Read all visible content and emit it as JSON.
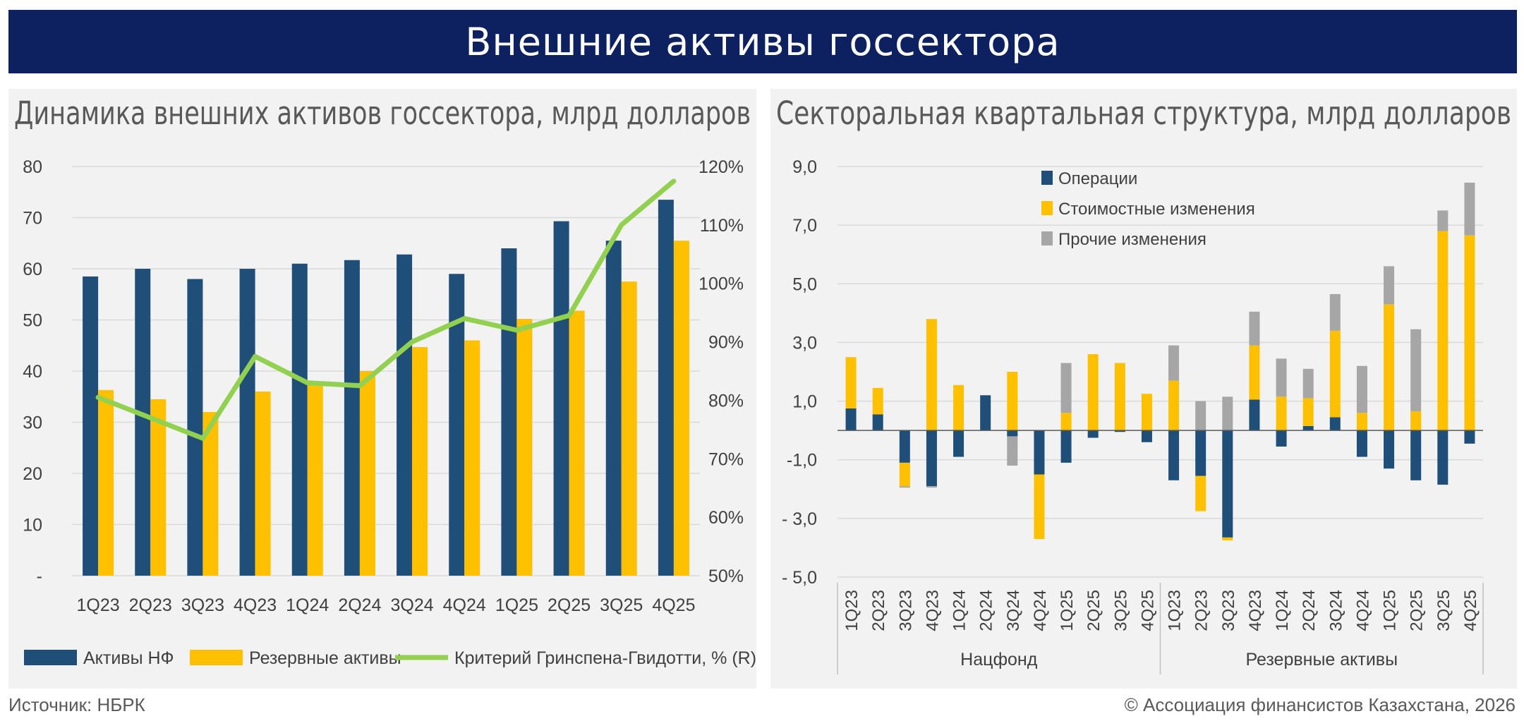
{
  "header": {
    "title": "Внешние активы госсектора"
  },
  "footer": {
    "source": "Источник: НБРК",
    "copyright": "© Ассоциация финансистов Казахстана, 2026"
  },
  "colors": {
    "banner": "#0d2160",
    "navy": "#1f4e79",
    "yellow": "#ffc000",
    "green": "#92d050",
    "gray": "#a6a6a6"
  },
  "chart_data": [
    {
      "type": "bar",
      "title": "Динамика внешних активов госсектора, млрд долларов",
      "categories": [
        "1Q23",
        "2Q23",
        "3Q23",
        "4Q23",
        "1Q24",
        "2Q24",
        "3Q24",
        "4Q24",
        "1Q25",
        "2Q25",
        "3Q25",
        "4Q25"
      ],
      "y_ticks": [
        "-",
        "10",
        "20",
        "30",
        "40",
        "50",
        "60",
        "70",
        "80"
      ],
      "y2_ticks": [
        "50%",
        "60%",
        "70%",
        "80%",
        "90%",
        "100%",
        "110%",
        "120%"
      ],
      "ylim": [
        0,
        80
      ],
      "y2lim": [
        50,
        120
      ],
      "grid": true,
      "legend_position": "bottom",
      "series": [
        {
          "name": "Активы НФ",
          "kind": "bar",
          "color": "#1f4e79",
          "values": [
            58.5,
            60.0,
            58.0,
            60.0,
            61.0,
            61.7,
            62.8,
            59.0,
            64.0,
            69.3,
            65.5,
            73.5
          ]
        },
        {
          "name": "Резервные активы",
          "kind": "bar",
          "color": "#ffc000",
          "values": [
            36.3,
            34.5,
            32.0,
            36.0,
            37.5,
            40.0,
            44.7,
            46.0,
            50.2,
            51.8,
            57.5,
            65.5
          ]
        },
        {
          "name": "Критерий Гринспена-Гвидотти, % (R)",
          "kind": "line",
          "axis": "right",
          "color": "#92d050",
          "values": [
            80.5,
            77.0,
            73.5,
            87.5,
            83.0,
            82.5,
            90.0,
            94.0,
            92.0,
            94.5,
            110.0,
            117.5
          ]
        }
      ]
    },
    {
      "type": "bar",
      "stacked": true,
      "title": "Секторальная квартальная структура, млрд долларов",
      "categories": [
        "1Q23",
        "2Q23",
        "3Q23",
        "4Q23",
        "1Q24",
        "2Q24",
        "3Q24",
        "4Q24",
        "1Q25",
        "2Q25",
        "3Q25",
        "4Q25",
        "1Q23",
        "2Q23",
        "3Q23",
        "4Q23",
        "1Q24",
        "2Q24",
        "3Q24",
        "4Q24",
        "1Q25",
        "2Q25",
        "3Q25",
        "4Q25"
      ],
      "groups": [
        {
          "label": "Нацфонд",
          "count": 12
        },
        {
          "label": "Резервные активы",
          "count": 12
        }
      ],
      "y_ticks": [
        "- 5,0",
        "- 3,0",
        "-1,0",
        "1,0",
        "3,0",
        "5,0",
        "7,0",
        "9,0"
      ],
      "ylim": [
        -5,
        9
      ],
      "grid": true,
      "legend_position": "top-left",
      "series": [
        {
          "name": "Операции",
          "color": "#1f4e79",
          "values": [
            0.75,
            0.55,
            -1.1,
            -1.9,
            -0.9,
            1.2,
            -0.2,
            -1.5,
            -1.1,
            -0.25,
            -0.05,
            -0.4,
            -1.7,
            -1.55,
            -3.65,
            1.05,
            -0.55,
            0.15,
            0.45,
            -0.9,
            -1.3,
            -1.7,
            -1.85,
            -0.45
          ]
        },
        {
          "name": "Стоимостные изменения",
          "color": "#ffc000",
          "values": [
            1.75,
            0.9,
            -0.8,
            3.8,
            1.55,
            0,
            2.0,
            -2.2,
            0.6,
            2.6,
            2.3,
            1.25,
            1.7,
            -1.2,
            -0.1,
            1.85,
            1.15,
            0.95,
            2.95,
            0.6,
            4.3,
            0.65,
            6.8,
            6.65
          ]
        },
        {
          "name": "Прочие изменения",
          "color": "#a6a6a6",
          "values": [
            0,
            0,
            -0.05,
            -0.05,
            0,
            0,
            -1.0,
            0,
            1.7,
            0,
            0,
            0,
            1.2,
            1.0,
            1.15,
            1.15,
            1.3,
            1.0,
            1.25,
            1.6,
            1.3,
            2.8,
            0.7,
            1.8
          ]
        }
      ]
    }
  ]
}
